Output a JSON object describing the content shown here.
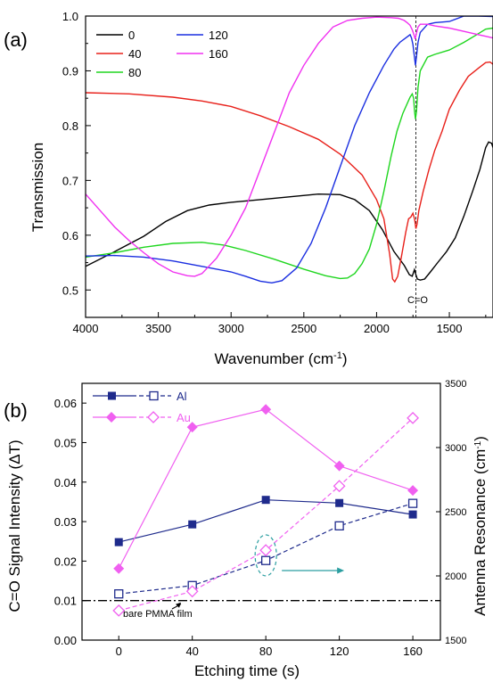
{
  "chart_data": [
    {
      "panel_label": "(a)",
      "type": "line",
      "xlabel": "Wavenumber (cm",
      "xlabel_sup": "-1",
      "xlabel_tail": ")",
      "ylabel": "Transmission",
      "xlim": [
        4000,
        1200
      ],
      "ylim": [
        0.45,
        1.0
      ],
      "x_ticks": [
        "4000",
        "3500",
        "3000",
        "2500",
        "2000",
        "1500"
      ],
      "x_tick_values": [
        4000,
        3500,
        3000,
        2500,
        2000,
        1500
      ],
      "y_ticks": [
        "0.5",
        "0.6",
        "0.7",
        "0.8",
        "0.9",
        "1.0"
      ],
      "y_tick_values": [
        0.5,
        0.6,
        0.7,
        0.8,
        0.9,
        1.0
      ],
      "annotation": "C=O",
      "annotation_x": 1730,
      "legend_position": "top-left",
      "series": [
        {
          "name": "0",
          "color": "#000000",
          "points": [
            [
              4000,
              0.543
            ],
            [
              3800,
              0.57
            ],
            [
              3600,
              0.598
            ],
            [
              3450,
              0.625
            ],
            [
              3300,
              0.645
            ],
            [
              3150,
              0.655
            ],
            [
              3000,
              0.66
            ],
            [
              2800,
              0.665
            ],
            [
              2600,
              0.67
            ],
            [
              2400,
              0.675
            ],
            [
              2250,
              0.674
            ],
            [
              2150,
              0.665
            ],
            [
              2050,
              0.645
            ],
            [
              1960,
              0.61
            ],
            [
              1880,
              0.57
            ],
            [
              1810,
              0.545
            ],
            [
              1775,
              0.528
            ],
            [
              1755,
              0.525
            ],
            [
              1740,
              0.537
            ],
            [
              1730,
              0.528
            ],
            [
              1720,
              0.52
            ],
            [
              1700,
              0.518
            ],
            [
              1670,
              0.52
            ],
            [
              1630,
              0.533
            ],
            [
              1580,
              0.55
            ],
            [
              1520,
              0.57
            ],
            [
              1460,
              0.595
            ],
            [
              1400,
              0.635
            ],
            [
              1340,
              0.68
            ],
            [
              1290,
              0.72
            ],
            [
              1250,
              0.76
            ],
            [
              1230,
              0.77
            ],
            [
              1210,
              0.768
            ],
            [
              1200,
              0.76
            ]
          ]
        },
        {
          "name": "40",
          "color": "#e8201a",
          "points": [
            [
              4000,
              0.86
            ],
            [
              3700,
              0.858
            ],
            [
              3400,
              0.852
            ],
            [
              3200,
              0.845
            ],
            [
              3000,
              0.835
            ],
            [
              2800,
              0.818
            ],
            [
              2600,
              0.798
            ],
            [
              2400,
              0.775
            ],
            [
              2250,
              0.748
            ],
            [
              2100,
              0.71
            ],
            [
              2000,
              0.665
            ],
            [
              1950,
              0.63
            ],
            [
              1910,
              0.565
            ],
            [
              1890,
              0.52
            ],
            [
              1875,
              0.515
            ],
            [
              1855,
              0.525
            ],
            [
              1830,
              0.56
            ],
            [
              1800,
              0.605
            ],
            [
              1780,
              0.63
            ],
            [
              1765,
              0.633
            ],
            [
              1750,
              0.64
            ],
            [
              1738,
              0.628
            ],
            [
              1730,
              0.612
            ],
            [
              1722,
              0.62
            ],
            [
              1710,
              0.645
            ],
            [
              1680,
              0.68
            ],
            [
              1640,
              0.72
            ],
            [
              1600,
              0.755
            ],
            [
              1550,
              0.79
            ],
            [
              1500,
              0.83
            ],
            [
              1430,
              0.865
            ],
            [
              1370,
              0.89
            ],
            [
              1300,
              0.905
            ],
            [
              1250,
              0.915
            ],
            [
              1220,
              0.916
            ],
            [
              1200,
              0.912
            ]
          ]
        },
        {
          "name": "80",
          "color": "#1fd61f",
          "points": [
            [
              4000,
              0.56
            ],
            [
              3800,
              0.568
            ],
            [
              3600,
              0.578
            ],
            [
              3400,
              0.585
            ],
            [
              3200,
              0.587
            ],
            [
              3050,
              0.582
            ],
            [
              2900,
              0.572
            ],
            [
              2700,
              0.556
            ],
            [
              2500,
              0.538
            ],
            [
              2350,
              0.526
            ],
            [
              2250,
              0.521
            ],
            [
              2200,
              0.522
            ],
            [
              2150,
              0.53
            ],
            [
              2100,
              0.548
            ],
            [
              2050,
              0.575
            ],
            [
              2000,
              0.62
            ],
            [
              1950,
              0.68
            ],
            [
              1900,
              0.745
            ],
            [
              1860,
              0.79
            ],
            [
              1820,
              0.822
            ],
            [
              1790,
              0.84
            ],
            [
              1770,
              0.852
            ],
            [
              1755,
              0.858
            ],
            [
              1745,
              0.85
            ],
            [
              1740,
              0.828
            ],
            [
              1733,
              0.812
            ],
            [
              1726,
              0.825
            ],
            [
              1715,
              0.87
            ],
            [
              1700,
              0.9
            ],
            [
              1650,
              0.925
            ],
            [
              1600,
              0.93
            ],
            [
              1500,
              0.938
            ],
            [
              1400,
              0.952
            ],
            [
              1300,
              0.968
            ],
            [
              1250,
              0.976
            ],
            [
              1200,
              0.978
            ]
          ]
        },
        {
          "name": "120",
          "color": "#1a2ee0",
          "points": [
            [
              4000,
              0.562
            ],
            [
              3800,
              0.563
            ],
            [
              3600,
              0.56
            ],
            [
              3400,
              0.553
            ],
            [
              3200,
              0.543
            ],
            [
              3000,
              0.533
            ],
            [
              2900,
              0.525
            ],
            [
              2800,
              0.516
            ],
            [
              2720,
              0.513
            ],
            [
              2650,
              0.517
            ],
            [
              2550,
              0.54
            ],
            [
              2450,
              0.585
            ],
            [
              2350,
              0.65
            ],
            [
              2250,
              0.725
            ],
            [
              2150,
              0.8
            ],
            [
              2050,
              0.86
            ],
            [
              1950,
              0.91
            ],
            [
              1880,
              0.94
            ],
            [
              1840,
              0.952
            ],
            [
              1800,
              0.96
            ],
            [
              1770,
              0.966
            ],
            [
              1760,
              0.96
            ],
            [
              1750,
              0.948
            ],
            [
              1740,
              0.925
            ],
            [
              1733,
              0.91
            ],
            [
              1726,
              0.925
            ],
            [
              1715,
              0.952
            ],
            [
              1700,
              0.97
            ],
            [
              1650,
              0.985
            ],
            [
              1600,
              0.988
            ],
            [
              1500,
              0.99
            ],
            [
              1400,
              1.0
            ],
            [
              1300,
              1.0
            ],
            [
              1200,
              0.999
            ]
          ]
        },
        {
          "name": "160",
          "color": "#f030f0",
          "points": [
            [
              4000,
              0.675
            ],
            [
              3900,
              0.645
            ],
            [
              3800,
              0.615
            ],
            [
              3700,
              0.59
            ],
            [
              3600,
              0.568
            ],
            [
              3500,
              0.548
            ],
            [
              3400,
              0.533
            ],
            [
              3300,
              0.526
            ],
            [
              3250,
              0.525
            ],
            [
              3200,
              0.53
            ],
            [
              3100,
              0.558
            ],
            [
              3000,
              0.6
            ],
            [
              2900,
              0.65
            ],
            [
              2800,
              0.72
            ],
            [
              2700,
              0.79
            ],
            [
              2600,
              0.86
            ],
            [
              2500,
              0.91
            ],
            [
              2400,
              0.95
            ],
            [
              2300,
              0.98
            ],
            [
              2200,
              0.992
            ],
            [
              2100,
              0.996
            ],
            [
              2000,
              0.998
            ],
            [
              1900,
              0.997
            ],
            [
              1850,
              0.996
            ],
            [
              1810,
              0.992
            ],
            [
              1790,
              0.988
            ],
            [
              1770,
              0.983
            ],
            [
              1755,
              0.975
            ],
            [
              1742,
              0.965
            ],
            [
              1735,
              0.958
            ],
            [
              1728,
              0.966
            ],
            [
              1715,
              0.98
            ],
            [
              1700,
              0.985
            ],
            [
              1650,
              0.985
            ],
            [
              1600,
              0.982
            ],
            [
              1500,
              0.978
            ],
            [
              1400,
              0.972
            ],
            [
              1300,
              0.966
            ],
            [
              1250,
              0.963
            ],
            [
              1200,
              0.96
            ]
          ]
        }
      ]
    },
    {
      "panel_label": "(b)",
      "type": "line",
      "xlabel": "Etching time (s)",
      "ylabel": "C=O Signal Intensity (ΔT)",
      "y2label": "Antenna Resonance (cm",
      "y2label_sup": "-1",
      "y2label_tail": ")",
      "xlim": [
        -20,
        175
      ],
      "ylim": [
        0.0,
        0.065
      ],
      "y2lim": [
        1500,
        3500
      ],
      "x_ticks": [
        "0",
        "40",
        "80",
        "120",
        "160"
      ],
      "x_tick_values": [
        0,
        40,
        80,
        120,
        160
      ],
      "y_ticks": [
        "0.00",
        "0.01",
        "0.02",
        "0.03",
        "0.04",
        "0.05",
        "0.06"
      ],
      "y_tick_values": [
        0.0,
        0.01,
        0.02,
        0.03,
        0.04,
        0.05,
        0.06
      ],
      "y2_ticks": [
        "1500",
        "2000",
        "2500",
        "3000",
        "3500"
      ],
      "y2_tick_values": [
        1500,
        2000,
        2500,
        3000,
        3500
      ],
      "baseline_value": 0.01,
      "baseline_label": "bare PMMA film",
      "legend_position": "top-left",
      "legend": [
        {
          "label": "Al",
          "color": "#1f2b8c"
        },
        {
          "label": "Au",
          "color": "#f060f0"
        }
      ],
      "x": [
        0,
        40,
        80,
        120,
        160
      ],
      "series": [
        {
          "group": "Al",
          "axis": "left",
          "color": "#1f2b8c",
          "marker": "filled-square",
          "values": [
            0.0248,
            0.0293,
            0.0355,
            0.0347,
            0.0318
          ]
        },
        {
          "group": "Al",
          "axis": "right",
          "color": "#1f2b8c",
          "marker": "open-square",
          "values": [
            1860,
            1925,
            2120,
            2390,
            2565
          ]
        },
        {
          "group": "Au",
          "axis": "left",
          "color": "#f060f0",
          "marker": "filled-diamond",
          "values": [
            0.0181,
            0.0539,
            0.0584,
            0.0441,
            0.0379
          ]
        },
        {
          "group": "Au",
          "axis": "right",
          "color": "#f060f0",
          "marker": "open-diamond",
          "values": [
            1730,
            1880,
            2200,
            2700,
            3230
          ]
        }
      ]
    }
  ]
}
